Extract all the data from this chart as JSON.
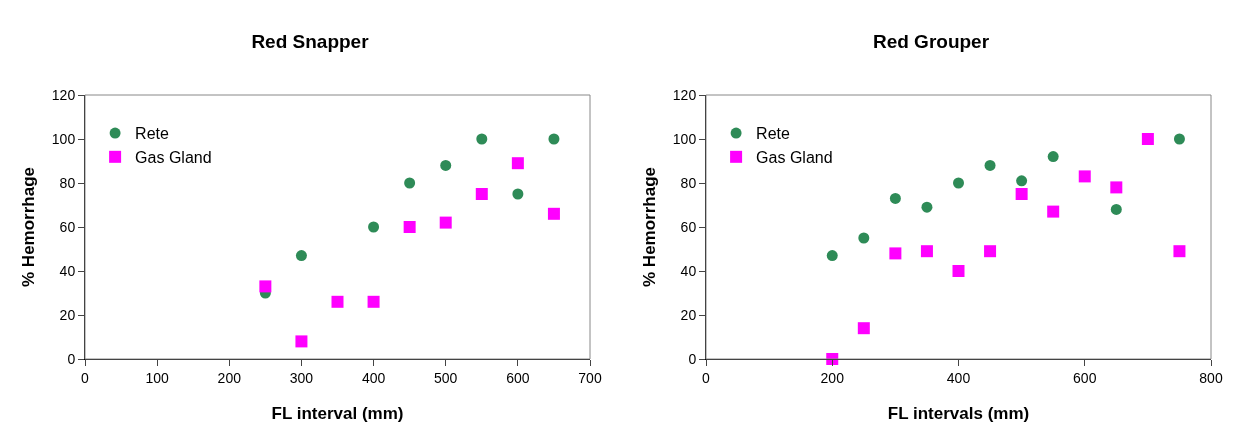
{
  "chart_data": [
    {
      "type": "scatter",
      "title": "Red Snapper",
      "xlabel": "FL interval (mm)",
      "ylabel": "% Hemorrhage",
      "xlim": [
        0,
        700
      ],
      "xticks": [
        0,
        100,
        200,
        300,
        400,
        500,
        600,
        700
      ],
      "ylim": [
        0,
        120
      ],
      "yticks": [
        0,
        20,
        40,
        60,
        80,
        100,
        120
      ],
      "grid": false,
      "legend": "top left",
      "series": [
        {
          "name": "Rete",
          "color": "#2e8b57",
          "marker": "circle",
          "x": [
            250,
            300,
            400,
            450,
            500,
            550,
            600,
            650
          ],
          "values": [
            30,
            47,
            60,
            80,
            88,
            100,
            75,
            100
          ]
        },
        {
          "name": "Gas Gland",
          "color": "#ff00ff",
          "marker": "square",
          "x": [
            250,
            300,
            350,
            400,
            450,
            500,
            550,
            600,
            650
          ],
          "values": [
            33,
            8,
            26,
            26,
            60,
            62,
            75,
            89,
            66
          ]
        }
      ]
    },
    {
      "type": "scatter",
      "title": "Red Grouper",
      "xlabel": "FL intervals (mm)",
      "ylabel": "% Hemorrhage",
      "xlim": [
        0,
        800
      ],
      "xticks": [
        0,
        200,
        400,
        600,
        800
      ],
      "ylim": [
        0,
        120
      ],
      "yticks": [
        0,
        20,
        40,
        60,
        80,
        100,
        120
      ],
      "grid": false,
      "legend": "top left",
      "series": [
        {
          "name": "Rete",
          "color": "#2e8b57",
          "marker": "circle",
          "x": [
            200,
            250,
            300,
            350,
            400,
            450,
            500,
            550,
            650,
            750
          ],
          "values": [
            47,
            55,
            73,
            69,
            80,
            88,
            81,
            92,
            68,
            100
          ]
        },
        {
          "name": "Gas Gland",
          "color": "#ff00ff",
          "marker": "square",
          "x": [
            200,
            250,
            300,
            350,
            400,
            450,
            500,
            550,
            600,
            650,
            700,
            750
          ],
          "values": [
            0,
            14,
            48,
            49,
            40,
            49,
            75,
            67,
            83,
            78,
            100,
            49
          ]
        }
      ]
    }
  ]
}
